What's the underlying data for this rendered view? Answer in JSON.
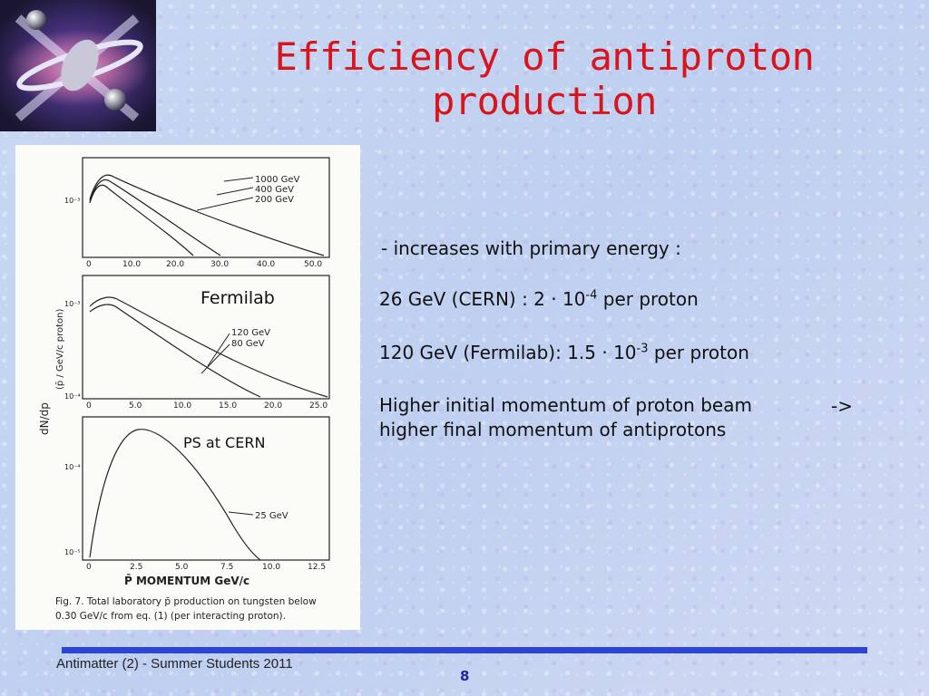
{
  "title": "Efficiency of antiproton production",
  "logo": {
    "icon": "antimatter-logo-icon"
  },
  "figure": {
    "panel1": {
      "legend": [
        "1000 GeV",
        "400 GeV",
        "200 GeV"
      ],
      "x_ticks": [
        "0",
        "10.0",
        "20.0",
        "30.0",
        "40.0",
        "50.0"
      ],
      "y_tick": "10⁻³"
    },
    "panel2": {
      "legend": [
        "120 GeV",
        "80 GeV"
      ],
      "x_ticks": [
        "0",
        "5.0",
        "10.0",
        "15.0",
        "20.0",
        "25.0"
      ],
      "y_ticks": [
        "10⁻³",
        "10⁻⁴"
      ]
    },
    "panel3": {
      "legend": [
        "25 GeV"
      ],
      "x_ticks": [
        "0",
        "2.5",
        "5.0",
        "7.5",
        "10.0",
        "12.5"
      ],
      "y_ticks": [
        "10⁻⁴",
        "10⁻⁵"
      ]
    },
    "ylabel_left": "dN/dp",
    "ylabel_right": "(p̄ / GeV/c proton)",
    "xlabel": "P̄  MOMENTUM  GeV/c",
    "caption_line1": "Fig. 7.  Total laboratory p̄ production on tungsten below",
    "caption_line2": "0.30 GeV/c from eq. (1) (per interacting proton)."
  },
  "labels": {
    "fermilab": "Fermilab",
    "ps_cern": "PS at CERN"
  },
  "bullets": {
    "b1": "- increases with primary energy :",
    "b2_pre": "26 GeV (CERN) : 2 · 10",
    "b2_exp": "-4",
    "b2_post": " per proton",
    "b3_pre": "120 GeV (Fermilab): 1.5 · 10",
    "b3_exp": "-3",
    "b3_post": " per proton",
    "b4": "Higher initial momentum of proton beam higher final momentum of antiprotons",
    "arrow": "->"
  },
  "footer": {
    "text": "Antimatter (2) - Summer Students 2011",
    "page": "8"
  }
}
